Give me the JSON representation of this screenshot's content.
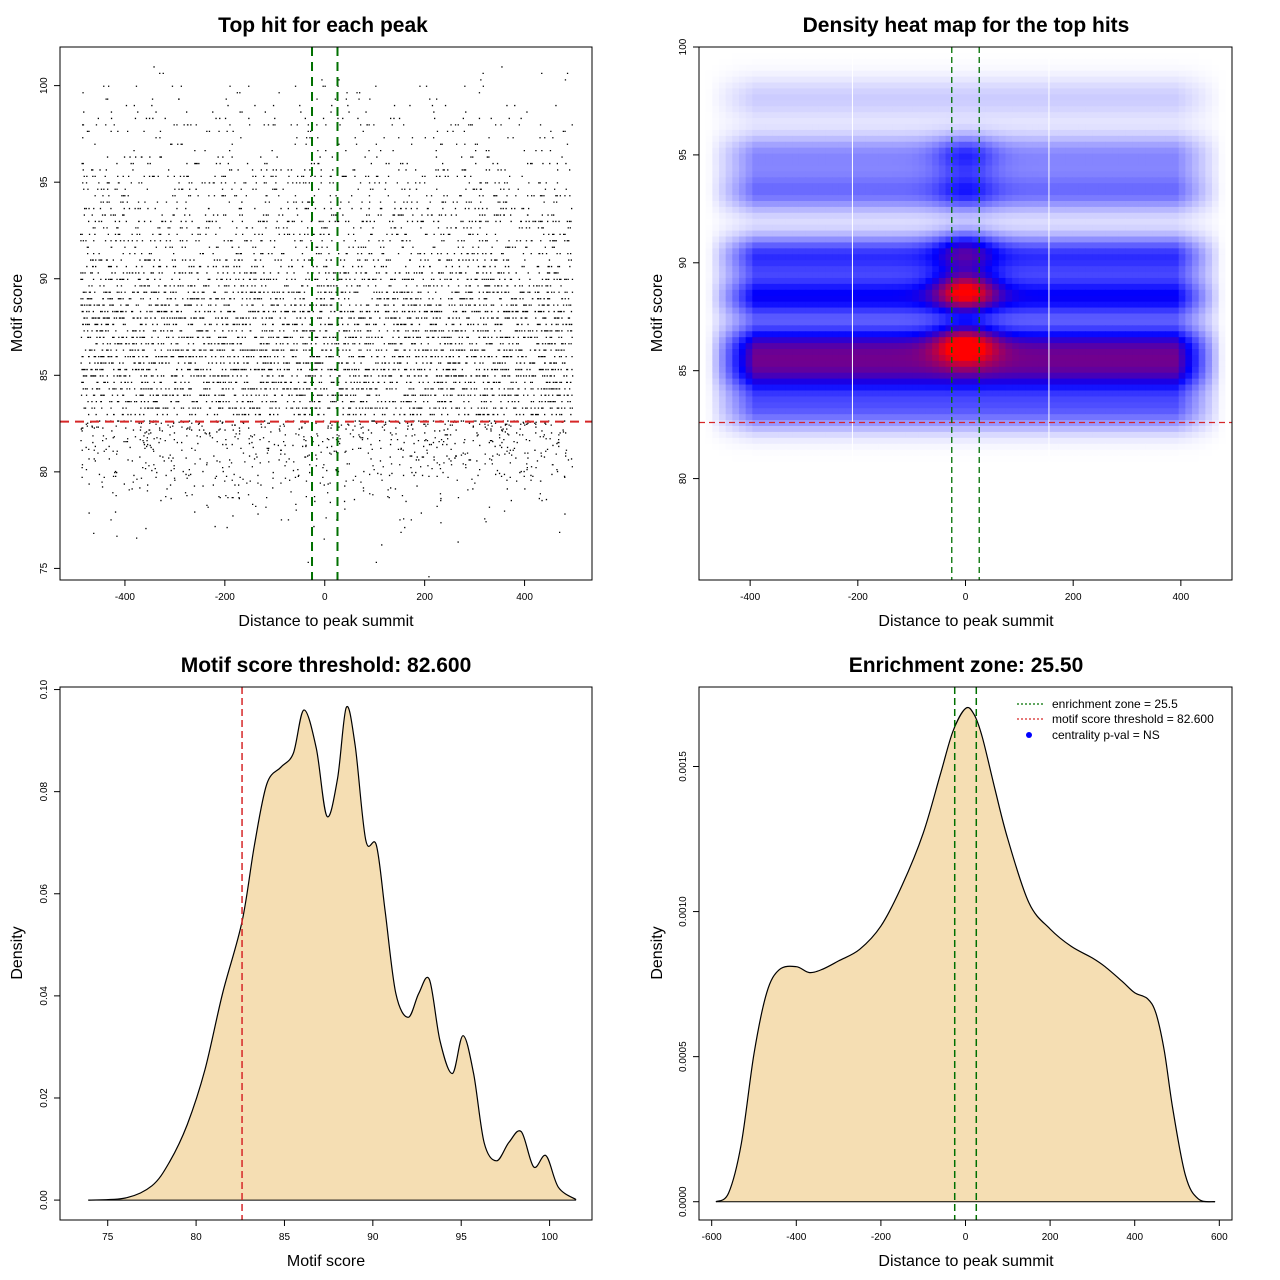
{
  "chart_data": [
    {
      "id": "scatter",
      "type": "scatter",
      "title": "Top hit for each peak",
      "xlabel": "Distance to peak summit",
      "ylabel": "Motif score",
      "xlim": [
        -530,
        535
      ],
      "ylim": [
        74.4,
        102.0
      ],
      "xticks": [
        -400,
        -200,
        0,
        200,
        400
      ],
      "yticks": [
        75,
        80,
        85,
        90,
        95,
        100
      ],
      "grid": false,
      "hlines": [
        {
          "y": 82.6,
          "color": "#d62728",
          "style": "dashed"
        }
      ],
      "vlines": [
        {
          "x": -25.5,
          "color": "#007000",
          "style": "dashed"
        },
        {
          "x": 25.5,
          "color": "#007000",
          "style": "dashed"
        }
      ],
      "x_range_of_points": [
        -490,
        495
      ],
      "y_distribution_note": "about 6000 points, x uniform in [-490, 495], y drawn from the motif score density (bottom-left panel)",
      "point_color": "#000000"
    },
    {
      "id": "heatmap",
      "type": "heatmap",
      "title": "Density heat map for the top hits",
      "xlabel": "Distance to peak summit",
      "ylabel": "Motif score",
      "xlim": [
        -495,
        495
      ],
      "ylim": [
        75.3,
        100.0
      ],
      "xticks": [
        -400,
        -200,
        0,
        200,
        400
      ],
      "yticks": [
        80,
        85,
        90,
        95,
        100
      ],
      "hlines": [
        {
          "y": 82.6,
          "color": "#d62728",
          "style": "dashed"
        }
      ],
      "vlines": [
        {
          "x": -25.5,
          "color": "#007000",
          "style": "dashed"
        },
        {
          "x": 25.5,
          "color": "#007000",
          "style": "dashed"
        }
      ],
      "white_lines_x": [
        -210,
        155
      ],
      "colors": [
        "#ffffff",
        "#0000ff",
        "#ff0000"
      ],
      "hotspots": [
        {
          "x": 0,
          "y": 88.7,
          "intensity": 1.0
        },
        {
          "x": 0,
          "y": 86.2,
          "intensity": 0.85
        },
        {
          "x": 0,
          "y": 90.6,
          "intensity": 0.5
        },
        {
          "x": 0,
          "y": 95.0,
          "intensity": 0.35
        },
        {
          "x": 0,
          "y": 93.3,
          "intensity": 0.3
        }
      ],
      "bands": [
        {
          "y": 84.9,
          "strength": 0.55
        },
        {
          "y": 86.2,
          "strength": 0.55
        },
        {
          "y": 88.4,
          "strength": 0.5
        },
        {
          "y": 90.3,
          "strength": 0.4
        },
        {
          "y": 93.3,
          "strength": 0.28
        },
        {
          "y": 95.0,
          "strength": 0.22
        },
        {
          "y": 97.6,
          "strength": 0.1
        },
        {
          "y": 83.2,
          "strength": 0.3
        }
      ]
    },
    {
      "id": "scoredens",
      "type": "area",
      "title": "Motif score threshold: 82.600",
      "xlabel": "Motif score",
      "ylabel": "Density",
      "xlim": [
        72.3,
        102.4
      ],
      "ylim": [
        -0.0039,
        0.1005
      ],
      "xticks": [
        75,
        80,
        85,
        90,
        95,
        100
      ],
      "yticks": [
        0.0,
        0.02,
        0.04,
        0.06,
        0.08,
        0.1
      ],
      "ytick_labels": [
        "0.00",
        "0.02",
        "0.04",
        "0.06",
        "0.08",
        "0.10"
      ],
      "fill": "#f5deb3",
      "vlines": [
        {
          "x": 82.6,
          "color": "#d62728",
          "style": "dashed"
        }
      ],
      "x": [
        73.9,
        76.0,
        77.5,
        78.5,
        79.5,
        80.5,
        81.5,
        82.6,
        83.3,
        84.0,
        84.8,
        85.5,
        86.1,
        86.8,
        87.4,
        88.0,
        88.5,
        89.0,
        89.6,
        90.2,
        90.7,
        91.3,
        92.0,
        92.6,
        93.2,
        93.8,
        94.5,
        95.1,
        95.7,
        96.3,
        97.0,
        97.7,
        98.4,
        99.1,
        99.8,
        100.5,
        101.5
      ],
      "y": [
        0.0,
        0.0004,
        0.0028,
        0.0075,
        0.0148,
        0.0255,
        0.0405,
        0.0545,
        0.0695,
        0.0815,
        0.0848,
        0.0875,
        0.096,
        0.0885,
        0.0752,
        0.0825,
        0.0965,
        0.089,
        0.0705,
        0.0695,
        0.0565,
        0.0405,
        0.0358,
        0.0405,
        0.0432,
        0.0312,
        0.0248,
        0.0322,
        0.0248,
        0.0112,
        0.0077,
        0.0113,
        0.0134,
        0.0065,
        0.0087,
        0.0025,
        0.0001
      ]
    },
    {
      "id": "distdens",
      "type": "area",
      "title": "Enrichment zone: 25.50",
      "xlabel": "Distance to peak summit",
      "ylabel": "Density",
      "xlim": [
        -630,
        630
      ],
      "ylim": [
        -6.3e-05,
        0.001774
      ],
      "xticks": [
        -600,
        -400,
        -200,
        0,
        200,
        400,
        600
      ],
      "yticks": [
        0.0,
        0.0005,
        0.001,
        0.0015
      ],
      "ytick_labels": [
        "0.0000",
        "0.0005",
        "0.0010",
        "0.0015"
      ],
      "fill": "#f5deb3",
      "vlines": [
        {
          "x": -25.5,
          "color": "#007000",
          "style": "dashed"
        },
        {
          "x": 25.5,
          "color": "#007000",
          "style": "dashed"
        }
      ],
      "x": [
        -590,
        -560,
        -530,
        -500,
        -470,
        -440,
        -400,
        -370,
        -340,
        -300,
        -250,
        -200,
        -150,
        -100,
        -60,
        -30,
        0,
        20,
        40,
        70,
        100,
        150,
        200,
        250,
        300,
        330,
        370,
        400,
        430,
        450,
        470,
        490,
        520,
        550,
        590
      ],
      "y": [
        0.0,
        3e-05,
        0.0002,
        0.00051,
        0.00072,
        0.0008,
        0.00081,
        0.00079,
        0.0008,
        0.00083,
        0.00087,
        0.00095,
        0.00109,
        0.00127,
        0.00147,
        0.00162,
        0.0017,
        0.00168,
        0.0016,
        0.00142,
        0.00125,
        0.00103,
        0.00094,
        0.00088,
        0.00084,
        0.00081,
        0.00076,
        0.00072,
        0.0007,
        0.00065,
        0.00052,
        0.00032,
        9e-05,
        1e-05,
        0.0
      ],
      "legend": {
        "position": "top-right",
        "entries": [
          {
            "label": "enrichment zone = 25.5",
            "color": "#007000",
            "kind": "dotted-line"
          },
          {
            "label": "motif score threshold = 82.600",
            "color": "#d62728",
            "kind": "dotted-line"
          },
          {
            "label": "centrality p-val = NS",
            "color": "#0000ff",
            "kind": "point"
          }
        ]
      }
    }
  ]
}
